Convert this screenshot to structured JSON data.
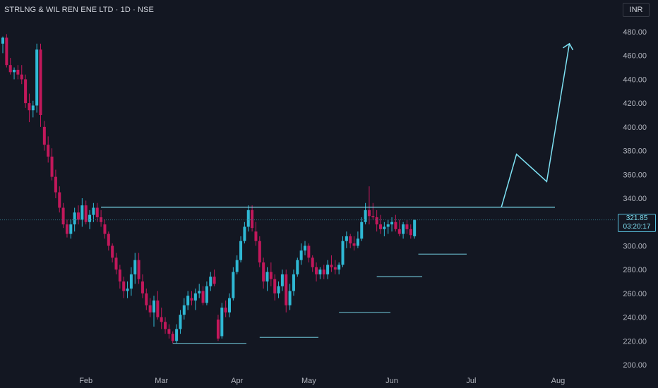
{
  "header": {
    "symbol_title": "STRLNG & WIL REN ENE LTD · 1D · NSE",
    "currency_button": "INR"
  },
  "price_label": {
    "last_price": "321.85",
    "countdown": "03:20:17"
  },
  "colors": {
    "background": "#131722",
    "up": "#2fb8d4",
    "down": "#c2185b",
    "drawing": "#7fe3f5",
    "axis_text": "#b2b5be"
  },
  "chart_data": {
    "type": "candlestick",
    "title": "STRLNG & WIL REN ENE LTD · 1D · NSE",
    "ylim": [
      194,
      490
    ],
    "y_ticks": [
      200,
      220,
      240,
      260,
      280,
      300,
      320,
      340,
      360,
      380,
      400,
      420,
      440,
      460,
      480
    ],
    "y_tick_labels": [
      "200.00",
      "220.00",
      "240.00",
      "260.00",
      "280.00",
      "300.00",
      "320.00",
      "340.00",
      "360.00",
      "380.00",
      "400.00",
      "420.00",
      "440.00",
      "460.00",
      "480.00"
    ],
    "x_ticks": [
      {
        "label": "Feb",
        "index": 22
      },
      {
        "label": "Mar",
        "index": 42
      },
      {
        "label": "Apr",
        "index": 62
      },
      {
        "label": "May",
        "index": 81
      },
      {
        "label": "Jun",
        "index": 103
      },
      {
        "label": "Jul",
        "index": 124
      },
      {
        "label": "Aug",
        "index": 147
      }
    ],
    "grid": false,
    "last_price": 321.85,
    "candles": [
      [
        470,
        476,
        462,
        475
      ],
      [
        475,
        478,
        450,
        452
      ],
      [
        452,
        458,
        444,
        446
      ],
      [
        446,
        450,
        440,
        448
      ],
      [
        448,
        452,
        440,
        444
      ],
      [
        444,
        452,
        436,
        440
      ],
      [
        440,
        444,
        416,
        420
      ],
      [
        420,
        428,
        404,
        414
      ],
      [
        414,
        422,
        408,
        418
      ],
      [
        418,
        470,
        412,
        465
      ],
      [
        465,
        470,
        400,
        410
      ],
      [
        400,
        405,
        380,
        385
      ],
      [
        385,
        392,
        370,
        375
      ],
      [
        375,
        382,
        355,
        358
      ],
      [
        358,
        364,
        340,
        345
      ],
      [
        345,
        350,
        328,
        332
      ],
      [
        332,
        336,
        315,
        318
      ],
      [
        318,
        322,
        307,
        310
      ],
      [
        310,
        322,
        306,
        318
      ],
      [
        318,
        332,
        312,
        328
      ],
      [
        328,
        334,
        318,
        322
      ],
      [
        322,
        340,
        316,
        334
      ],
      [
        334,
        338,
        318,
        320
      ],
      [
        320,
        330,
        314,
        326
      ],
      [
        326,
        336,
        320,
        332
      ],
      [
        332,
        336,
        320,
        324
      ],
      [
        324,
        330,
        316,
        320
      ],
      [
        318,
        322,
        306,
        310
      ],
      [
        310,
        312,
        296,
        300
      ],
      [
        300,
        302,
        286,
        290
      ],
      [
        290,
        294,
        276,
        280
      ],
      [
        280,
        284,
        264,
        270
      ],
      [
        270,
        274,
        256,
        262
      ],
      [
        262,
        270,
        256,
        264
      ],
      [
        264,
        282,
        258,
        276
      ],
      [
        276,
        294,
        268,
        288
      ],
      [
        288,
        294,
        268,
        272
      ],
      [
        270,
        276,
        256,
        260
      ],
      [
        260,
        264,
        246,
        250
      ],
      [
        250,
        256,
        240,
        244
      ],
      [
        244,
        258,
        232,
        254
      ],
      [
        254,
        262,
        238,
        240
      ],
      [
        240,
        248,
        230,
        236
      ],
      [
        236,
        240,
        226,
        230
      ],
      [
        230,
        234,
        222,
        226
      ],
      [
        226,
        228,
        218,
        220
      ],
      [
        220,
        234,
        218,
        230
      ],
      [
        230,
        246,
        226,
        242
      ],
      [
        242,
        256,
        238,
        250
      ],
      [
        250,
        262,
        246,
        258
      ],
      [
        256,
        262,
        250,
        254
      ],
      [
        254,
        264,
        246,
        260
      ],
      [
        260,
        268,
        256,
        262
      ],
      [
        262,
        266,
        250,
        252
      ],
      [
        252,
        270,
        250,
        266
      ],
      [
        266,
        278,
        262,
        274
      ],
      [
        274,
        280,
        266,
        268
      ],
      [
        238,
        242,
        220,
        222
      ],
      [
        224,
        252,
        222,
        248
      ],
      [
        248,
        254,
        240,
        244
      ],
      [
        244,
        260,
        240,
        256
      ],
      [
        256,
        282,
        254,
        278
      ],
      [
        278,
        292,
        276,
        288
      ],
      [
        288,
        308,
        286,
        304
      ],
      [
        304,
        320,
        302,
        316
      ],
      [
        316,
        334,
        312,
        330
      ],
      [
        330,
        334,
        312,
        315
      ],
      [
        312,
        320,
        300,
        304
      ],
      [
        304,
        308,
        282,
        286
      ],
      [
        286,
        290,
        264,
        270
      ],
      [
        270,
        282,
        262,
        278
      ],
      [
        278,
        286,
        266,
        272
      ],
      [
        272,
        276,
        254,
        260
      ],
      [
        260,
        270,
        256,
        266
      ],
      [
        266,
        280,
        262,
        276
      ],
      [
        276,
        280,
        244,
        250
      ],
      [
        250,
        268,
        246,
        262
      ],
      [
        262,
        280,
        258,
        276
      ],
      [
        276,
        290,
        274,
        288
      ],
      [
        288,
        302,
        284,
        296
      ],
      [
        296,
        304,
        292,
        300
      ],
      [
        300,
        302,
        286,
        290
      ],
      [
        290,
        292,
        278,
        282
      ],
      [
        282,
        286,
        270,
        276
      ],
      [
        276,
        282,
        272,
        280
      ],
      [
        280,
        284,
        272,
        276
      ],
      [
        276,
        288,
        272,
        284
      ],
      [
        284,
        292,
        278,
        282
      ],
      [
        282,
        288,
        276,
        280
      ],
      [
        280,
        286,
        276,
        284
      ],
      [
        284,
        308,
        282,
        304
      ],
      [
        304,
        312,
        298,
        308
      ],
      [
        308,
        310,
        298,
        302
      ],
      [
        302,
        308,
        296,
        300
      ],
      [
        300,
        312,
        298,
        306
      ],
      [
        306,
        324,
        304,
        320
      ],
      [
        320,
        336,
        318,
        330
      ],
      [
        330,
        350,
        318,
        325
      ],
      [
        325,
        336,
        322,
        324
      ],
      [
        324,
        330,
        312,
        318
      ],
      [
        318,
        326,
        310,
        314
      ],
      [
        314,
        320,
        308,
        316
      ],
      [
        316,
        322,
        310,
        318
      ],
      [
        318,
        324,
        312,
        320
      ],
      [
        320,
        326,
        312,
        314
      ],
      [
        314,
        322,
        308,
        310
      ],
      [
        310,
        320,
        306,
        318
      ],
      [
        318,
        322,
        310,
        314
      ],
      [
        314,
        318,
        306,
        309
      ],
      [
        308,
        322,
        306,
        321.85
      ]
    ],
    "drawings": {
      "resistance_line": 332.5,
      "support_lines": [
        218,
        223,
        244,
        274,
        293
      ],
      "projection_path": [
        {
          "index": 132,
          "price": 332.5
        },
        {
          "index": 136,
          "price": 377
        },
        {
          "index": 144,
          "price": 354
        },
        {
          "index": 150,
          "price": 470
        }
      ]
    }
  }
}
